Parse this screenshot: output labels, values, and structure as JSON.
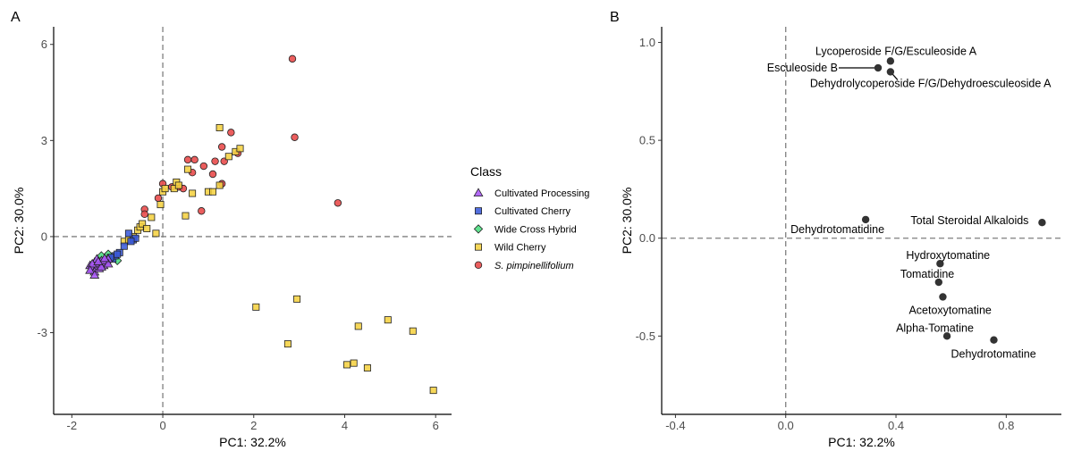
{
  "panels": {
    "a": {
      "tag": "A"
    },
    "b": {
      "tag": "B"
    }
  },
  "chart_data": [
    {
      "type": "scatter",
      "panel": "A",
      "xlabel": "PC1: 32.2%",
      "ylabel": "PC2: 30.0%",
      "xlim": [
        -2.4,
        6.35
      ],
      "ylim": [
        -5.55,
        6.55
      ],
      "xticks": [
        -2,
        0,
        2,
        4,
        6
      ],
      "yticks": [
        -3,
        0,
        3,
        6
      ],
      "xtick_labels": [
        "-2",
        "0",
        "2",
        "4",
        "6"
      ],
      "ytick_labels": [
        "-3",
        "0",
        "3",
        "6"
      ],
      "reference_lines": {
        "x": 0,
        "y": 0
      },
      "grid": false,
      "legend": {
        "title": "Class",
        "position": "right",
        "entries": [
          {
            "label": "Cultivated Processing",
            "shape": "triangle",
            "color": "#a855f7",
            "italic": false
          },
          {
            "label": "Cultivated Cherry",
            "shape": "square",
            "color": "#3b5bdb",
            "italic": false
          },
          {
            "label": "Wide Cross Hybrid",
            "shape": "diamond",
            "color": "#4ade80",
            "italic": false
          },
          {
            "label": "Wild Cherry",
            "shape": "square",
            "color": "#f5d142",
            "italic": false
          },
          {
            "label": "S. pimpinellifolium",
            "shape": "circle",
            "color": "#e84848",
            "italic": true
          }
        ]
      },
      "series": [
        {
          "name": "Cultivated Processing",
          "shape": "triangle",
          "color": "#a855f7",
          "points": [
            [
              -1.6,
              -0.9
            ],
            [
              -1.55,
              -1.0
            ],
            [
              -1.5,
              -0.8
            ],
            [
              -1.45,
              -0.95
            ],
            [
              -1.5,
              -1.1
            ],
            [
              -1.4,
              -0.85
            ],
            [
              -1.35,
              -0.75
            ],
            [
              -1.3,
              -0.9
            ],
            [
              -1.45,
              -0.7
            ],
            [
              -1.55,
              -0.85
            ],
            [
              -1.25,
              -0.8
            ],
            [
              -1.2,
              -0.7
            ],
            [
              -1.4,
              -1.0
            ],
            [
              -1.35,
              -0.95
            ],
            [
              -1.6,
              -1.05
            ],
            [
              -1.3,
              -0.75
            ],
            [
              -1.5,
              -1.2
            ],
            [
              -1.2,
              -0.85
            ],
            [
              -1.42,
              -0.78
            ],
            [
              -1.28,
              -0.68
            ]
          ]
        },
        {
          "name": "Cultivated Cherry",
          "shape": "square",
          "color": "#3b5bdb",
          "points": [
            [
              -1.1,
              -0.7
            ],
            [
              -1.05,
              -0.6
            ],
            [
              -0.95,
              -0.5
            ],
            [
              -0.85,
              -0.3
            ],
            [
              -0.75,
              0.1
            ],
            [
              -0.65,
              -0.1
            ],
            [
              -0.6,
              -0.05
            ],
            [
              -0.7,
              -0.15
            ],
            [
              -1.0,
              -0.55
            ],
            [
              -1.15,
              -0.65
            ]
          ]
        },
        {
          "name": "Wide Cross Hybrid",
          "shape": "diamond",
          "color": "#4ade80",
          "points": [
            [
              -1.35,
              -0.6
            ],
            [
              -1.2,
              -0.55
            ],
            [
              -1.15,
              -0.7
            ],
            [
              -1.0,
              -0.75
            ]
          ]
        },
        {
          "name": "Wild Cherry",
          "shape": "square",
          "color": "#f5d142",
          "points": [
            [
              -0.85,
              -0.15
            ],
            [
              -0.75,
              -0.1
            ],
            [
              -0.65,
              0.0
            ],
            [
              -0.55,
              0.2
            ],
            [
              -0.5,
              0.3
            ],
            [
              -0.45,
              0.4
            ],
            [
              -0.35,
              0.25
            ],
            [
              -0.25,
              0.6
            ],
            [
              -0.15,
              0.1
            ],
            [
              -0.05,
              1.0
            ],
            [
              0.0,
              1.4
            ],
            [
              0.05,
              1.5
            ],
            [
              0.25,
              1.5
            ],
            [
              0.3,
              1.7
            ],
            [
              0.35,
              1.6
            ],
            [
              0.5,
              0.65
            ],
            [
              0.55,
              2.1
            ],
            [
              0.65,
              1.35
            ],
            [
              1.0,
              1.4
            ],
            [
              1.1,
              1.4
            ],
            [
              1.25,
              1.6
            ],
            [
              1.25,
              3.4
            ],
            [
              1.45,
              2.5
            ],
            [
              1.6,
              2.65
            ],
            [
              1.7,
              2.75
            ],
            [
              2.05,
              -2.2
            ],
            [
              2.75,
              -3.35
            ],
            [
              2.95,
              -1.95
            ],
            [
              4.05,
              -4.0
            ],
            [
              4.2,
              -3.95
            ],
            [
              4.3,
              -2.8
            ],
            [
              4.5,
              -4.1
            ],
            [
              4.95,
              -2.6
            ],
            [
              5.5,
              -2.95
            ],
            [
              5.95,
              -4.8
            ]
          ]
        },
        {
          "name": "S. pimpinellifolium",
          "shape": "circle",
          "color": "#e84848",
          "points": [
            [
              -0.4,
              0.85
            ],
            [
              -0.4,
              0.7
            ],
            [
              -0.1,
              1.2
            ],
            [
              0.0,
              1.65
            ],
            [
              0.2,
              1.55
            ],
            [
              0.35,
              1.55
            ],
            [
              0.45,
              1.5
            ],
            [
              0.55,
              2.4
            ],
            [
              0.65,
              2.0
            ],
            [
              0.7,
              2.4
            ],
            [
              0.85,
              0.8
            ],
            [
              0.9,
              2.2
            ],
            [
              1.1,
              1.95
            ],
            [
              1.15,
              2.35
            ],
            [
              1.3,
              1.65
            ],
            [
              1.3,
              2.8
            ],
            [
              1.35,
              2.35
            ],
            [
              1.5,
              3.25
            ],
            [
              1.65,
              2.6
            ],
            [
              2.85,
              5.55
            ],
            [
              2.9,
              3.1
            ],
            [
              3.85,
              1.05
            ]
          ]
        }
      ]
    },
    {
      "type": "scatter",
      "panel": "B",
      "xlabel": "PC1: 32.2%",
      "ylabel": "PC2: 30.0%",
      "xlim": [
        -0.45,
        1.0
      ],
      "ylim": [
        -0.9,
        1.08
      ],
      "xticks": [
        -0.4,
        0.0,
        0.4,
        0.8
      ],
      "yticks": [
        -0.5,
        0.0,
        0.5,
        1.0
      ],
      "xtick_labels": [
        "-0.4",
        "0.0",
        "0.4",
        "0.8"
      ],
      "ytick_labels": [
        "-0.5",
        "0.0",
        "0.5",
        "1.0"
      ],
      "reference_lines": {
        "x": 0,
        "y": 0
      },
      "grid": false,
      "point_color": "#333333",
      "points": [
        {
          "label": "Lycoperoside F/G/Esculeoside A",
          "x": 0.38,
          "y": 0.905
        },
        {
          "label": "Esculeoside B",
          "x": 0.335,
          "y": 0.87
        },
        {
          "label": "Dehydrolycoperoside F/G/Dehydroesculeoside A",
          "x": 0.38,
          "y": 0.85
        },
        {
          "label": "Dehydrotomatidine",
          "x": 0.29,
          "y": 0.095
        },
        {
          "label": "Total Steroidal Alkaloids",
          "x": 0.93,
          "y": 0.08
        },
        {
          "label": "Hydroxytomatine",
          "x": 0.56,
          "y": -0.13
        },
        {
          "label": "Tomatidine",
          "x": 0.555,
          "y": -0.225
        },
        {
          "label": "Acetoxytomatine",
          "x": 0.57,
          "y": -0.3
        },
        {
          "label": "Alpha-Tomatine",
          "x": 0.585,
          "y": -0.5
        },
        {
          "label": "Dehydrotomatine",
          "x": 0.755,
          "y": -0.52
        }
      ]
    }
  ]
}
